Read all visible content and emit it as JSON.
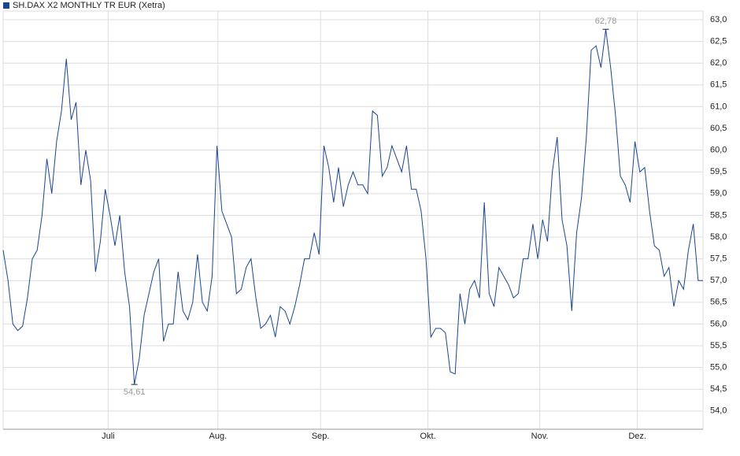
{
  "chart_data": {
    "type": "line",
    "series": [
      {
        "name": "SH.DAX X2 MONTHLY TR EUR (Xetra)",
        "color": "#1a4690",
        "values": [
          57.7,
          57.0,
          56.0,
          55.85,
          55.95,
          56.6,
          57.5,
          57.7,
          58.5,
          59.8,
          59.0,
          60.2,
          60.9,
          62.1,
          60.7,
          61.1,
          59.2,
          60.0,
          59.3,
          57.2,
          57.9,
          59.1,
          58.5,
          57.8,
          58.5,
          57.2,
          56.4,
          54.61,
          55.2,
          56.2,
          56.7,
          57.2,
          57.5,
          55.6,
          56.0,
          56.0,
          57.2,
          56.3,
          56.1,
          56.5,
          57.6,
          56.5,
          56.3,
          57.1,
          60.1,
          58.6,
          58.3,
          58.0,
          56.7,
          56.8,
          57.3,
          57.5,
          56.6,
          55.9,
          56.0,
          56.2,
          55.7,
          56.4,
          56.3,
          56.0,
          56.4,
          56.9,
          57.5,
          57.5,
          58.1,
          57.6,
          60.1,
          59.6,
          58.8,
          59.6,
          58.7,
          59.2,
          59.5,
          59.2,
          59.2,
          59.0,
          60.9,
          60.8,
          59.4,
          59.6,
          60.1,
          59.8,
          59.5,
          60.1,
          59.1,
          59.1,
          58.6,
          57.5,
          55.7,
          55.9,
          55.9,
          55.8,
          54.9,
          54.85,
          56.7,
          56.0,
          56.8,
          57.0,
          56.6,
          58.8,
          56.7,
          56.4,
          57.3,
          57.1,
          56.9,
          56.6,
          56.7,
          57.5,
          57.5,
          58.3,
          57.5,
          58.4,
          57.9,
          59.5,
          60.3,
          58.4,
          57.8,
          56.3,
          58.1,
          58.9,
          60.3,
          62.3,
          62.4,
          61.9,
          62.78,
          61.9,
          60.8,
          59.4,
          59.2,
          58.8,
          60.2,
          59.5,
          59.6,
          58.6,
          57.8,
          57.7,
          57.1,
          57.3,
          56.4,
          57.0,
          56.8,
          57.7,
          58.3,
          57.0,
          57.0
        ]
      }
    ],
    "max_label": "62,78",
    "min_label": "54,61",
    "xlim": [
      0,
      144
    ],
    "xticks": [
      {
        "value": 21.6,
        "label": "Juli"
      },
      {
        "value": 44.2,
        "label": "Aug."
      },
      {
        "value": 65.3,
        "label": "Sep."
      },
      {
        "value": 87.4,
        "label": "Okt."
      },
      {
        "value": 110.4,
        "label": "Nov."
      },
      {
        "value": 130.5,
        "label": "Dez."
      }
    ],
    "ylim": [
      53.58,
      63.2
    ],
    "yticks": [
      {
        "value": 54.0,
        "label": "54,0"
      },
      {
        "value": 54.5,
        "label": "54,5"
      },
      {
        "value": 55.0,
        "label": "55,0"
      },
      {
        "value": 55.5,
        "label": "55,5"
      },
      {
        "value": 56.0,
        "label": "56,0"
      },
      {
        "value": 56.5,
        "label": "56,5"
      },
      {
        "value": 57.0,
        "label": "57,0"
      },
      {
        "value": 57.5,
        "label": "57,5"
      },
      {
        "value": 58.0,
        "label": "58,0"
      },
      {
        "value": 58.5,
        "label": "58,5"
      },
      {
        "value": 59.0,
        "label": "59,0"
      },
      {
        "value": 59.5,
        "label": "59,5"
      },
      {
        "value": 60.0,
        "label": "60,0"
      },
      {
        "value": 60.5,
        "label": "60,5"
      },
      {
        "value": 61.0,
        "label": "61,0"
      },
      {
        "value": 61.5,
        "label": "61,5"
      },
      {
        "value": 62.0,
        "label": "62,0"
      },
      {
        "value": 62.5,
        "label": "62,5"
      },
      {
        "value": 63.0,
        "label": "63,0"
      }
    ],
    "grid": true
  }
}
